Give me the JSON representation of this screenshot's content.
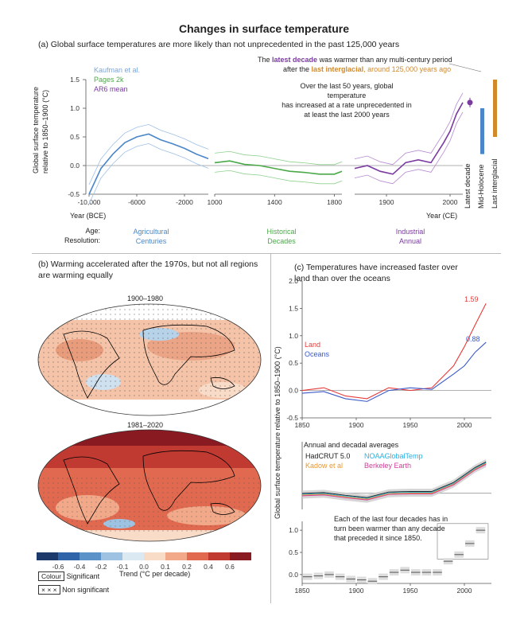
{
  "title": "Changes in surface temperature",
  "panel_a": {
    "heading": "(a) Global surface temperatures are more likely than not unprecedented in the past 125,000 years",
    "legend": {
      "kaufman": "Kaufman et al.",
      "pages2k": "Pages 2k",
      "ar6": "AR6 mean"
    },
    "ylabel_1": "Global surface temperature",
    "ylabel_2": "relative to 1850–1900 (°C)",
    "xlabel_left": "Year (BCE)",
    "xlabel_right": "Year (CE)",
    "annot_top_1": "The",
    "annot_latest": "latest decade",
    "annot_top_2": "was warmer than any multi-century period",
    "annot_top_3": "after the",
    "annot_interglacial": "last interglacial",
    "annot_top_4": ", around 125,000 years ago",
    "annot_mid_1": "Over the last 50 years, global temperature",
    "annot_mid_2": "has increased at a rate unprecedented in",
    "annot_mid_3": "at least the last 2000 years",
    "bar_labels": [
      "Latest decade",
      "Mid-Holocene",
      "Last interglacial"
    ],
    "age_label": "Age:",
    "resolution_label": "Resolution:",
    "ages": [
      {
        "age": "Agricultural",
        "res": "Centuries",
        "color": "#4a86c8"
      },
      {
        "age": "Historical",
        "res": "Decades",
        "color": "#4aa848"
      },
      {
        "age": "Industrial",
        "res": "Annual",
        "color": "#7a3aa0"
      }
    ],
    "chart_data": {
      "type": "line",
      "segments": [
        {
          "name": "Kaufman et al.",
          "x_ticks": [
            "-10,000",
            "-6000",
            "-2000"
          ],
          "x": [
            -10000,
            -9000,
            -8000,
            -7000,
            -6000,
            -5000,
            -4000,
            -3000,
            -2000,
            -1000,
            0
          ],
          "y": [
            -0.5,
            -0.05,
            0.2,
            0.4,
            0.5,
            0.55,
            0.45,
            0.38,
            0.3,
            0.2,
            0.12
          ]
        },
        {
          "name": "Pages 2k",
          "x_ticks": [
            "1000",
            "1400",
            "1800"
          ],
          "x": [
            1000,
            1100,
            1200,
            1300,
            1400,
            1500,
            1600,
            1700,
            1800,
            1850
          ],
          "y": [
            0.05,
            0.08,
            0.02,
            0.0,
            -0.05,
            -0.1,
            -0.12,
            -0.15,
            -0.15,
            -0.1
          ]
        },
        {
          "name": "AR6 mean",
          "x_ticks": [
            "1900",
            "2000"
          ],
          "x": [
            1850,
            1870,
            1890,
            1910,
            1930,
            1950,
            1970,
            1990,
            2000,
            2010,
            2020
          ],
          "y": [
            -0.05,
            0.0,
            -0.1,
            -0.15,
            0.05,
            0.1,
            0.05,
            0.4,
            0.6,
            0.9,
            1.1
          ]
        }
      ],
      "latest_decade": 1.1,
      "mid_holocene_range": [
        0.2,
        1.0
      ],
      "last_interglacial_range": [
        0.5,
        1.5
      ],
      "ylim": [
        -0.5,
        1.5
      ],
      "yticks": [
        "1.5",
        "1.0",
        "0.5",
        "0.0",
        "-0.5"
      ]
    }
  },
  "panel_b": {
    "heading_1": "(b) Warming accelerated after the 1970s, but not all regions",
    "heading_2": "are warming equally",
    "map1_title": "1900–1980",
    "map2_title": "1981–2020",
    "colorbar_ticks": [
      "-0.6",
      "-0.4",
      "-0.2",
      "-0.1",
      "0.0",
      "0.1",
      "0.2",
      "0.4",
      "0.6"
    ],
    "colorbar_colors": [
      "#1b3a6b",
      "#2f65a8",
      "#5b93c8",
      "#9ec3e2",
      "#dbe9f3",
      "#f9dcc8",
      "#f1a98a",
      "#e0694f",
      "#c03a32",
      "#8a1a22"
    ],
    "trend_label": "Trend (°C per decade)",
    "colour_box": "Colour",
    "significant": "Significant",
    "nonsig_box": "× × ×",
    "non_significant": "Non significant"
  },
  "panel_c": {
    "heading_1": "(c) Temperatures have increased faster over",
    "heading_2": "land than over the oceans",
    "ylabel": "Global surface temperature relative to 1850–1900 (°C)",
    "land_label": "Land",
    "oceans_label": "Oceans",
    "land_value": "1.59",
    "ocean_value": "0.88",
    "avg_title": "Annual and decadal averages",
    "datasets": [
      {
        "name": "HadCRUT 5.0",
        "color": "#222222"
      },
      {
        "name": "NOAAGlobalTemp",
        "color": "#2ab0e0"
      },
      {
        "name": "Kadow et al",
        "color": "#e8982a"
      },
      {
        "name": "Berkeley Earth",
        "color": "#d0409a"
      }
    ],
    "decade_note_1": "Each of the last four decades has in",
    "decade_note_2": "turn been warmer than any decade",
    "decade_note_3": "that preceded it since 1850.",
    "chart_data": [
      {
        "type": "line",
        "x_ticks": [
          "1850",
          "1900",
          "1950",
          "2000"
        ],
        "yticks": [
          "2.0",
          "1.5",
          "1.0",
          "0.5",
          "0.0",
          "-0.5"
        ],
        "ylim": [
          -0.5,
          2.0
        ],
        "series": [
          {
            "name": "Land",
            "color": "#e83a3a",
            "x": [
              1850,
              1870,
              1890,
              1910,
              1930,
              1950,
              1970,
              1990,
              2000,
              2010,
              2020
            ],
            "y": [
              0.0,
              0.05,
              -0.1,
              -0.15,
              0.05,
              0.0,
              0.05,
              0.45,
              0.8,
              1.2,
              1.59
            ]
          },
          {
            "name": "Oceans",
            "color": "#3a58c8",
            "x": [
              1850,
              1870,
              1890,
              1910,
              1930,
              1950,
              1970,
              1990,
              2000,
              2010,
              2020
            ],
            "y": [
              -0.05,
              -0.02,
              -0.15,
              -0.2,
              0.0,
              0.05,
              0.02,
              0.3,
              0.45,
              0.7,
              0.88
            ]
          }
        ]
      },
      {
        "type": "line",
        "title": "Annual and decadal averages",
        "series": [
          {
            "name": "HadCRUT 5.0",
            "x": [
              1850,
              1870,
              1890,
              1910,
              1930,
              1950,
              1970,
              1990,
              2010,
              2020
            ],
            "y": [
              -0.05,
              -0.02,
              -0.12,
              -0.2,
              0.0,
              0.02,
              0.02,
              0.35,
              0.9,
              1.1
            ]
          }
        ]
      },
      {
        "type": "bar",
        "x_ticks": [
          "1850",
          "1900",
          "1950",
          "2000"
        ],
        "yticks": [
          "1.0",
          "0.5",
          "0.0"
        ],
        "ylim": [
          -0.2,
          1.2
        ],
        "categories": [
          "1850s",
          "1860s",
          "1870s",
          "1880s",
          "1890s",
          "1900s",
          "1910s",
          "1920s",
          "1930s",
          "1940s",
          "1950s",
          "1960s",
          "1970s",
          "1980s",
          "1990s",
          "2000s",
          "2010s"
        ],
        "values": [
          -0.05,
          -0.03,
          0.0,
          -0.05,
          -0.1,
          -0.12,
          -0.15,
          -0.05,
          0.05,
          0.1,
          0.05,
          0.05,
          0.05,
          0.3,
          0.45,
          0.7,
          1.0
        ]
      }
    ]
  }
}
